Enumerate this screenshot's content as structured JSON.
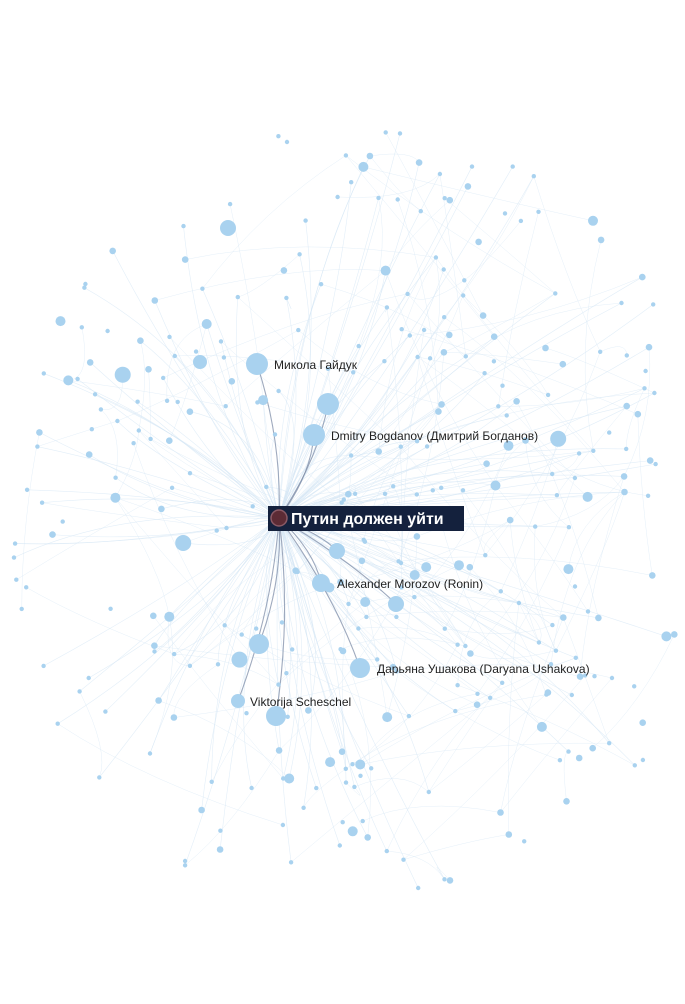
{
  "graph": {
    "title": "Путин должен уйти",
    "center": {
      "label": "Путин должен уйти",
      "color": "#5c2b35",
      "ring_color": "#14213d"
    },
    "colors": {
      "node": "#a9d2ef",
      "edge_faint": "#d6e7f5",
      "edge_strong": "#7f8ea8",
      "background": "#ffffff"
    },
    "labeled_nodes": [
      {
        "id": "mykola",
        "label": "Микола Гайдук"
      },
      {
        "id": "bogdanov",
        "label": "Dmitry  Bogdanov (Дмитрий Богданов)"
      },
      {
        "id": "morozov",
        "label": "Alexander Morozov (Ronin)"
      },
      {
        "id": "ushakova",
        "label": "Дарьяна Ушакова (Daryana  Ushakova)"
      },
      {
        "id": "scheschel",
        "label": "Viktorija Scheschel"
      }
    ],
    "unlabeled_node_count": 320
  }
}
